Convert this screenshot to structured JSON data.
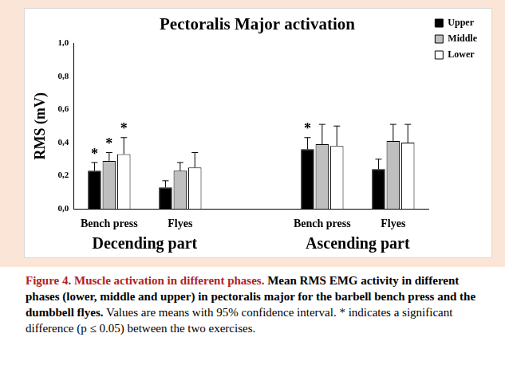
{
  "chart_data": {
    "type": "bar",
    "title": "Pectoralis Major activation",
    "y_label": "RMS (mV)",
    "categories": [
      "Bench press",
      "Flyes",
      null,
      "Bench press",
      "Flyes"
    ],
    "groups": [
      {
        "label": "Decending part",
        "categories": [
          0,
          1
        ]
      },
      {
        "label": "Ascending part",
        "categories": [
          3,
          4
        ]
      }
    ],
    "series": [
      {
        "name": "Upper",
        "color": "#000000",
        "values": [
          0.23,
          0.13,
          null,
          0.36,
          0.24
        ],
        "errors": [
          0.05,
          0.04,
          null,
          0.07,
          0.06
        ]
      },
      {
        "name": "Middle",
        "color": "#bfbfbf",
        "values": [
          0.29,
          0.23,
          null,
          0.39,
          0.41
        ],
        "errors": [
          0.05,
          0.05,
          null,
          0.12,
          0.1
        ]
      },
      {
        "name": "Lower",
        "color": "#ffffff",
        "values": [
          0.33,
          0.25,
          null,
          0.38,
          0.4
        ],
        "errors": [
          0.1,
          0.09,
          null,
          0.12,
          0.11
        ]
      }
    ],
    "ylim": [
      0,
      1
    ],
    "yticks": [
      {
        "value": 0,
        "label": "0,0"
      },
      {
        "value": 0.2,
        "label": "0,2"
      },
      {
        "value": 0.4,
        "label": "0,4"
      },
      {
        "value": 0.6,
        "label": "0,6"
      },
      {
        "value": 0.8,
        "label": "0,8"
      },
      {
        "value": 1,
        "label": "1,0"
      }
    ],
    "grid": false,
    "legend": "top right",
    "annotations": [
      {
        "text": "*",
        "series": "Upper",
        "category": 0
      },
      {
        "text": "*",
        "series": "Middle",
        "category": 0
      },
      {
        "text": "*",
        "series": "Lower",
        "category": 0
      },
      {
        "text": "*",
        "series": "Upper",
        "category": 3
      }
    ]
  },
  "caption": {
    "label": "Figure 4.",
    "title": "Muscle activation in different phases.",
    "bold_text": "Mean RMS EMG activity in different phases (lower, middle and upper) in pectoralis major for the barbell bench press and the dumbbell flyes.",
    "text": "Values are means with 95% confidence interval. * indicates a significant difference (p ≤ 0.05) between the two exercises."
  }
}
